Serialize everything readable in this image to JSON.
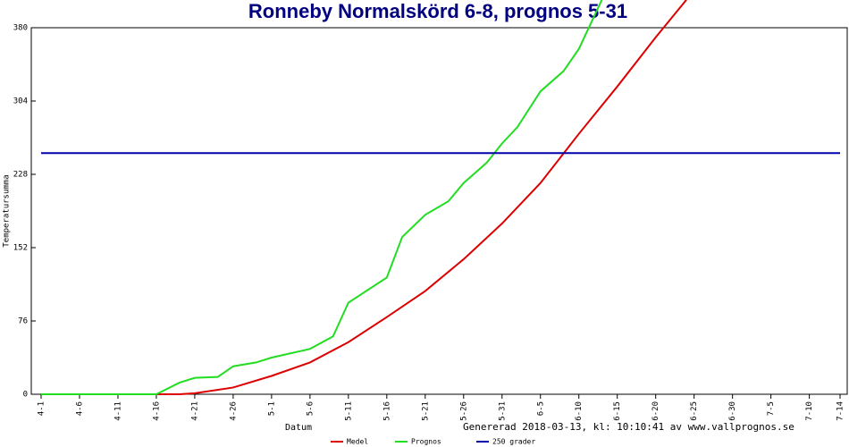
{
  "chart_data": {
    "type": "line",
    "title": "Ronneby Normalskörd 6-8, prognos 5-31",
    "x_label": "Datum",
    "y_label": "Temperatursumma",
    "annotation": "Genererad 2018-03-13, kl: 10:10:41 av www.vallprognos.se",
    "xlim": [
      0,
      104
    ],
    "xticks": [
      {
        "value": 0,
        "label": "4-1"
      },
      {
        "value": 5,
        "label": "4-6"
      },
      {
        "value": 10,
        "label": "4-11"
      },
      {
        "value": 15,
        "label": "4-16"
      },
      {
        "value": 20,
        "label": "4-21"
      },
      {
        "value": 25,
        "label": "4-26"
      },
      {
        "value": 30,
        "label": "5-1"
      },
      {
        "value": 35,
        "label": "5-6"
      },
      {
        "value": 40,
        "label": "5-11"
      },
      {
        "value": 45,
        "label": "5-16"
      },
      {
        "value": 50,
        "label": "5-21"
      },
      {
        "value": 55,
        "label": "5-26"
      },
      {
        "value": 60,
        "label": "5-31"
      },
      {
        "value": 65,
        "label": "6-5"
      },
      {
        "value": 70,
        "label": "6-10"
      },
      {
        "value": 75,
        "label": "6-15"
      },
      {
        "value": 80,
        "label": "6-20"
      },
      {
        "value": 85,
        "label": "6-25"
      },
      {
        "value": 90,
        "label": "6-30"
      },
      {
        "value": 95,
        "label": "7-5"
      },
      {
        "value": 100,
        "label": "7-10"
      },
      {
        "value": 104,
        "label": "7-14"
      }
    ],
    "ylim": [
      0,
      380
    ],
    "yticks": [
      0,
      76,
      152,
      228,
      304,
      380
    ],
    "series": [
      {
        "name": "Medel",
        "color": "#dd0000",
        "x": [
          0,
          5,
          10,
          15,
          18,
          20,
          25,
          30,
          35,
          40,
          45,
          50,
          55,
          60,
          65,
          70,
          75,
          80,
          84
        ],
        "values": [
          0,
          0,
          0,
          0,
          0,
          1,
          7,
          19,
          33,
          54,
          80,
          107,
          140,
          177,
          219,
          270,
          319,
          370,
          409
        ]
      },
      {
        "name": "Prognos",
        "color": "#22dd22",
        "x": [
          0,
          5,
          10,
          15,
          18,
          20,
          23,
          25,
          28,
          30,
          35,
          38,
          40,
          45,
          47,
          50,
          53,
          55,
          58,
          60,
          62,
          65,
          68,
          70,
          73
        ],
        "values": [
          0,
          0,
          0,
          0,
          12,
          17,
          18,
          29,
          33,
          38,
          47,
          60,
          95,
          121,
          163,
          186,
          200,
          219,
          240,
          260,
          277,
          314,
          335,
          358,
          409
        ]
      },
      {
        "name": "250 grader",
        "color": "#0000aa",
        "x": [
          0,
          104
        ],
        "values": [
          250,
          250
        ]
      }
    ]
  }
}
